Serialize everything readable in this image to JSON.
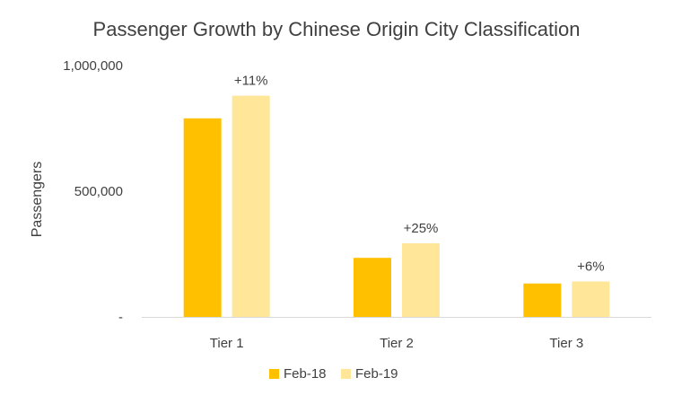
{
  "chart_data": {
    "type": "bar",
    "title": "Passenger Growth by Chinese Origin City Classification",
    "xlabel": "",
    "ylabel": "Passengers",
    "categories": [
      "Tier 1",
      "Tier 2",
      "Tier 3"
    ],
    "ylim": [
      0,
      1000000
    ],
    "yticks": [
      {
        "value": 0,
        "label": "-"
      },
      {
        "value": 500000,
        "label": "500,000"
      },
      {
        "value": 1000000,
        "label": "1,000,000"
      }
    ],
    "series": [
      {
        "name": "Feb-18",
        "color": "#FFC000",
        "values": [
          790000,
          235000,
          133000
        ]
      },
      {
        "name": "Feb-19",
        "color": "#FFE699",
        "values": [
          880000,
          293000,
          141000
        ]
      }
    ],
    "annotations": [
      {
        "category": "Tier 1",
        "series": "Feb-19",
        "text": "+11%"
      },
      {
        "category": "Tier 2",
        "series": "Feb-19",
        "text": "+25%"
      },
      {
        "category": "Tier 3",
        "series": "Feb-19",
        "text": "+6%"
      }
    ],
    "grid": false,
    "legend_position": "bottom",
    "axis_color": "#D9D9D9"
  }
}
